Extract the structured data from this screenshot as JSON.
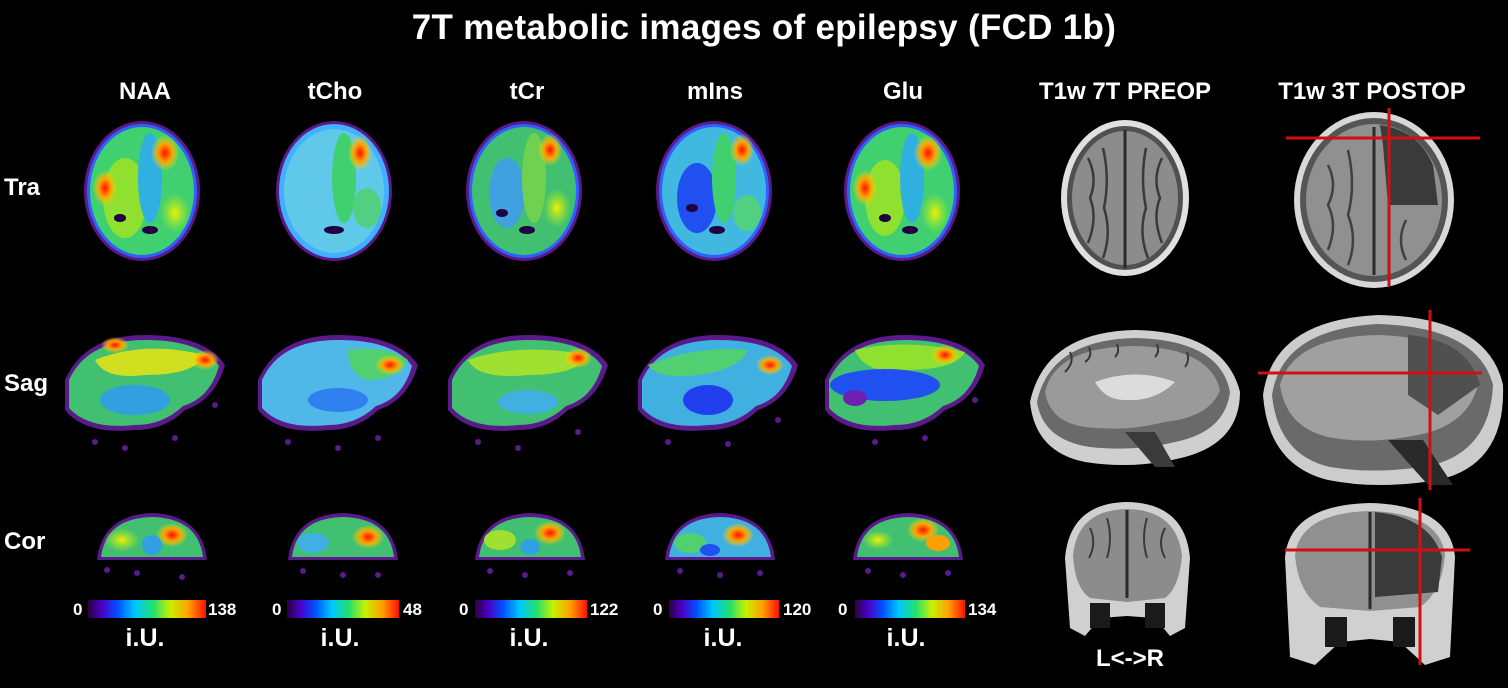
{
  "title": "7T metabolic images of epilepsy (FCD 1b)",
  "columns": [
    {
      "label": "NAA",
      "min": "0",
      "max": "138",
      "unit": "i.U."
    },
    {
      "label": "tCho",
      "min": "0",
      "max": "48",
      "unit": "i.U."
    },
    {
      "label": "tCr",
      "min": "0",
      "max": "122",
      "unit": "i.U."
    },
    {
      "label": "mIns",
      "min": "0",
      "max": "120",
      "unit": "i.U."
    },
    {
      "label": "Glu",
      "min": "0",
      "max": "134",
      "unit": "i.U."
    }
  ],
  "anatomy_columns": [
    {
      "label": "T1w 7T PREOP"
    },
    {
      "label": "T1w 3T POSTOP"
    }
  ],
  "rows": [
    {
      "label": "Tra"
    },
    {
      "label": "Sag"
    },
    {
      "label": "Cor"
    }
  ],
  "orientation_label": "L<->R",
  "colors": {
    "background": "#000000",
    "crosshair": "#d01010"
  }
}
